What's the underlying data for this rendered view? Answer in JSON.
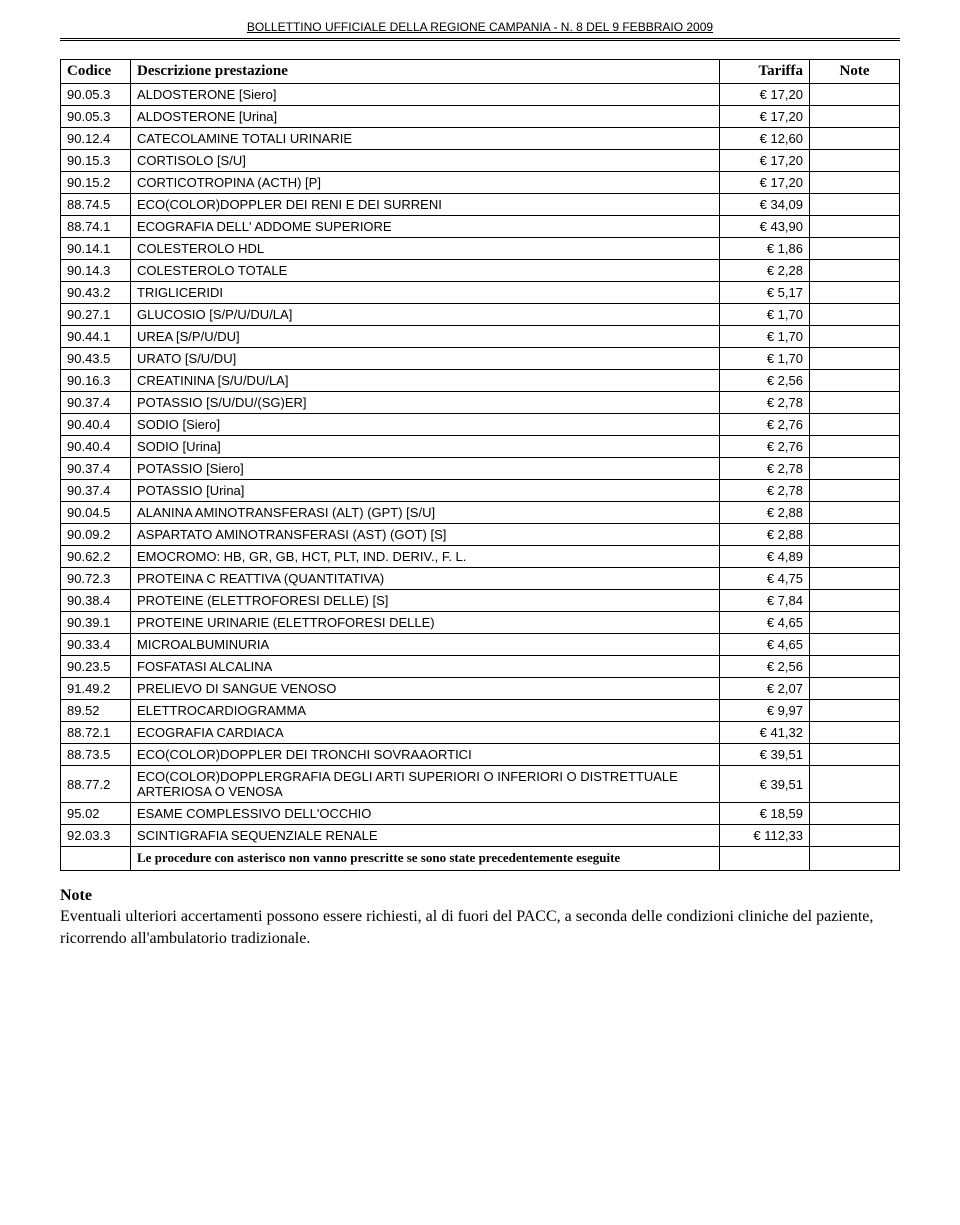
{
  "header": {
    "text": "BOLLETTINO UFFICIALE DELLA REGIONE CAMPANIA - N. 8 DEL 9 FEBBRAIO 2009"
  },
  "table": {
    "columns": {
      "code": "Codice",
      "desc": "Descrizione prestazione",
      "tariff": "Tariffa",
      "note": "Note"
    },
    "rows": [
      {
        "code": "90.05.3",
        "desc": "ALDOSTERONE [Siero]",
        "tariff": "€ 17,20",
        "note": ""
      },
      {
        "code": "90.05.3",
        "desc": "ALDOSTERONE [Urina]",
        "tariff": "€ 17,20",
        "note": ""
      },
      {
        "code": "90.12.4",
        "desc": "CATECOLAMINE TOTALI URINARIE",
        "tariff": "€ 12,60",
        "note": ""
      },
      {
        "code": "90.15.3",
        "desc": "CORTISOLO [S/U]",
        "tariff": "€ 17,20",
        "note": ""
      },
      {
        "code": "90.15.2",
        "desc": "CORTICOTROPINA (ACTH) [P]",
        "tariff": "€ 17,20",
        "note": ""
      },
      {
        "code": "88.74.5",
        "desc": "ECO(COLOR)DOPPLER DEI RENI E DEI SURRENI",
        "tariff": "€ 34,09",
        "note": ""
      },
      {
        "code": "88.74.1",
        "desc": "ECOGRAFIA DELL' ADDOME SUPERIORE",
        "tariff": "€ 43,90",
        "note": ""
      },
      {
        "code": "90.14.1",
        "desc": "COLESTEROLO HDL",
        "tariff": "€ 1,86",
        "note": ""
      },
      {
        "code": "90.14.3",
        "desc": "COLESTEROLO TOTALE",
        "tariff": "€ 2,28",
        "note": ""
      },
      {
        "code": "90.43.2",
        "desc": "TRIGLICERIDI",
        "tariff": "€ 5,17",
        "note": ""
      },
      {
        "code": "90.27.1",
        "desc": "GLUCOSIO [S/P/U/DU/LA]",
        "tariff": "€ 1,70",
        "note": ""
      },
      {
        "code": "90.44.1",
        "desc": "UREA [S/P/U/DU]",
        "tariff": "€ 1,70",
        "note": ""
      },
      {
        "code": "90.43.5",
        "desc": "URATO [S/U/DU]",
        "tariff": "€ 1,70",
        "note": ""
      },
      {
        "code": "90.16.3",
        "desc": "CREATININA [S/U/DU/LA]",
        "tariff": "€ 2,56",
        "note": ""
      },
      {
        "code": "90.37.4",
        "desc": "POTASSIO [S/U/DU/(SG)ER]",
        "tariff": "€ 2,78",
        "note": ""
      },
      {
        "code": "90.40.4",
        "desc": "SODIO [Siero]",
        "tariff": "€ 2,76",
        "note": ""
      },
      {
        "code": "90.40.4",
        "desc": "SODIO [Urina]",
        "tariff": "€ 2,76",
        "note": ""
      },
      {
        "code": "90.37.4",
        "desc": "POTASSIO [Siero]",
        "tariff": "€ 2,78",
        "note": ""
      },
      {
        "code": "90.37.4",
        "desc": "POTASSIO [Urina]",
        "tariff": "€ 2,78",
        "note": ""
      },
      {
        "code": "90.04.5",
        "desc": "ALANINA AMINOTRANSFERASI (ALT) (GPT) [S/U]",
        "tariff": "€ 2,88",
        "note": ""
      },
      {
        "code": "90.09.2",
        "desc": "ASPARTATO AMINOTRANSFERASI  (AST) (GOT) [S]",
        "tariff": "€ 2,88",
        "note": ""
      },
      {
        "code": "90.62.2",
        "desc": "EMOCROMO:  HB, GR, GB, HCT, PLT, IND. DERIV., F. L.",
        "tariff": "€ 4,89",
        "note": ""
      },
      {
        "code": "90.72.3",
        "desc": "PROTEINA C REATTIVA (QUANTITATIVA)",
        "tariff": "€ 4,75",
        "note": ""
      },
      {
        "code": "90.38.4",
        "desc": "PROTEINE (ELETTROFORESI DELLE) [S]",
        "tariff": "€ 7,84",
        "note": ""
      },
      {
        "code": "90.39.1",
        "desc": "PROTEINE URINARIE (ELETTROFORESI DELLE)",
        "tariff": "€ 4,65",
        "note": ""
      },
      {
        "code": "90.33.4",
        "desc": "MICROALBUMINURIA",
        "tariff": "€ 4,65",
        "note": ""
      },
      {
        "code": "90.23.5",
        "desc": "FOSFATASI ALCALINA",
        "tariff": "€ 2,56",
        "note": ""
      },
      {
        "code": "91.49.2",
        "desc": "PRELIEVO DI SANGUE VENOSO",
        "tariff": "€ 2,07",
        "note": ""
      },
      {
        "code": "89.52",
        "desc": "ELETTROCARDIOGRAMMA",
        "tariff": "€ 9,97",
        "note": ""
      },
      {
        "code": "88.72.1",
        "desc": "ECOGRAFIA CARDIACA",
        "tariff": "€ 41,32",
        "note": ""
      },
      {
        "code": "88.73.5",
        "desc": "ECO(COLOR)DOPPLER DEI TRONCHI SOVRAAORTICI",
        "tariff": "€ 39,51",
        "note": ""
      },
      {
        "code": "88.77.2",
        "desc": "ECO(COLOR)DOPPLERGRAFIA DEGLI ARTI SUPERIORI O INFERIORI O DISTRETTUALE ARTERIOSA O VENOSA",
        "tariff": "€ 39,51",
        "note": ""
      },
      {
        "code": "95.02",
        "desc": "ESAME COMPLESSIVO DELL'OCCHIO",
        "tariff": "€ 18,59",
        "note": ""
      },
      {
        "code": "92.03.3",
        "desc": "SCINTIGRAFIA SEQUENZIALE RENALE",
        "tariff": "€ 112,33",
        "note": ""
      }
    ],
    "footer_text": "Le procedure con  asterisco non vanno prescritte se sono state precedentemente eseguite"
  },
  "note": {
    "title": "Note",
    "body": "Eventuali ulteriori accertamenti possono essere richiesti, al di fuori del PACC, a seconda delle condizioni cliniche del paziente, ricorrendo all'ambulatorio tradizionale."
  }
}
